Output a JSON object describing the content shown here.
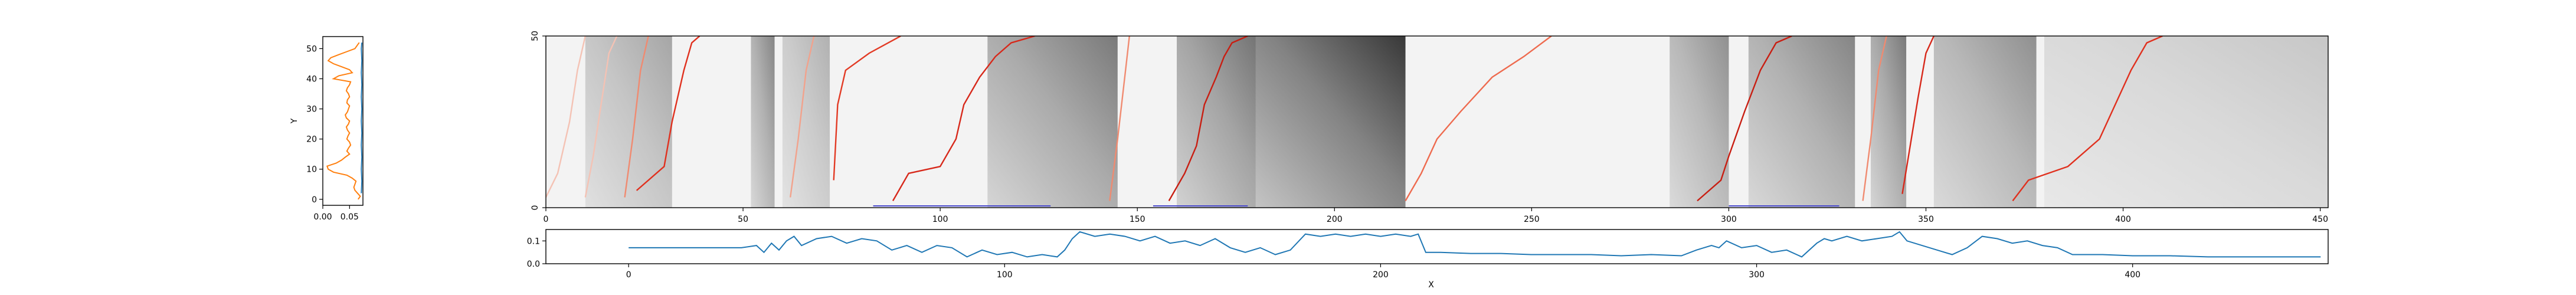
{
  "chart_data": [
    {
      "id": "left-profile",
      "type": "line",
      "ylabel": "Y",
      "xlim": [
        0,
        0.075
      ],
      "ylim": [
        -2,
        54
      ],
      "x_ticks": [
        0.0,
        0.05
      ],
      "x_tick_labels": [
        "0.00",
        "0.05"
      ],
      "y_ticks": [
        0,
        10,
        20,
        30,
        40,
        50
      ],
      "y_tick_labels": [
        "0",
        "10",
        "20",
        "30",
        "40",
        "50"
      ],
      "series": [
        {
          "color": "#ff7f0e",
          "y": [
            0,
            1,
            2,
            3,
            4,
            5,
            6,
            7,
            8,
            9,
            10,
            11,
            12,
            13,
            14,
            15,
            16,
            17,
            18,
            19,
            20,
            21,
            22,
            23,
            24,
            25,
            26,
            27,
            28,
            29,
            30,
            31,
            32,
            33,
            34,
            35,
            36,
            37,
            38,
            39,
            40,
            41,
            42,
            43,
            44,
            45,
            46,
            47,
            48,
            49,
            50,
            51,
            52
          ],
          "x": [
            0.066,
            0.07,
            0.065,
            0.06,
            0.058,
            0.06,
            0.062,
            0.055,
            0.045,
            0.02,
            0.01,
            0.008,
            0.025,
            0.035,
            0.042,
            0.05,
            0.045,
            0.048,
            0.052,
            0.05,
            0.045,
            0.047,
            0.05,
            0.046,
            0.044,
            0.048,
            0.05,
            0.044,
            0.042,
            0.046,
            0.048,
            0.05,
            0.045,
            0.046,
            0.05,
            0.048,
            0.044,
            0.046,
            0.05,
            0.052,
            0.02,
            0.03,
            0.055,
            0.05,
            0.035,
            0.02,
            0.01,
            0.015,
            0.03,
            0.045,
            0.06,
            0.064,
            0.068
          ]
        },
        {
          "color": "#1f77b4",
          "y": [
            2,
            6,
            10,
            14,
            18,
            22,
            26,
            30,
            34,
            38,
            42,
            46,
            50,
            52
          ],
          "x": [
            0.072,
            0.073,
            0.072,
            0.073,
            0.072,
            0.073,
            0.072,
            0.073,
            0.072,
            0.073,
            0.072,
            0.073,
            0.072,
            0.073
          ]
        }
      ]
    },
    {
      "id": "main-heatmap",
      "type": "heatmap",
      "xlim": [
        0,
        452
      ],
      "ylim": [
        0,
        50
      ],
      "x_ticks": [
        0,
        50,
        100,
        150,
        200,
        250,
        300,
        350,
        400,
        450
      ],
      "x_tick_labels": [
        "0",
        "50",
        "100",
        "150",
        "200",
        "250",
        "300",
        "350",
        "400",
        "450"
      ],
      "y_ticks": [
        0,
        50
      ],
      "y_tick_labels": [
        "0",
        "50"
      ],
      "colormap": "greys",
      "dark_regions": [
        {
          "x0": 10,
          "x1": 32,
          "y0": 0,
          "y1": 50,
          "intensity": 0.35
        },
        {
          "x0": 52,
          "x1": 58,
          "y0": 0,
          "y1": 50,
          "intensity": 0.5
        },
        {
          "x0": 60,
          "x1": 72,
          "y0": 0,
          "y1": 50,
          "intensity": 0.3
        },
        {
          "x0": 112,
          "x1": 145,
          "y0": 0,
          "y1": 50,
          "intensity": 0.55
        },
        {
          "x0": 160,
          "x1": 182,
          "y0": 0,
          "y1": 50,
          "intensity": 0.6
        },
        {
          "x0": 180,
          "x1": 218,
          "y0": 0,
          "y1": 50,
          "intensity": 0.85
        },
        {
          "x0": 285,
          "x1": 300,
          "y0": 0,
          "y1": 50,
          "intensity": 0.45
        },
        {
          "x0": 305,
          "x1": 332,
          "y0": 0,
          "y1": 50,
          "intensity": 0.5
        },
        {
          "x0": 336,
          "x1": 345,
          "y0": 0,
          "y1": 50,
          "intensity": 0.55
        },
        {
          "x0": 352,
          "x1": 378,
          "y0": 0,
          "y1": 50,
          "intensity": 0.45
        },
        {
          "x0": 380,
          "x1": 452,
          "y0": 0,
          "y1": 50,
          "intensity": 0.2
        }
      ],
      "path_lines": [
        {
          "color": "#f4c2b4",
          "points": [
            [
              0,
              3
            ],
            [
              3,
              10
            ],
            [
              6,
              25
            ],
            [
              8,
              40
            ],
            [
              10,
              50
            ]
          ]
        },
        {
          "color": "#f4c2b4",
          "points": [
            [
              10,
              3
            ],
            [
              12,
              15
            ],
            [
              14,
              30
            ],
            [
              16,
              45
            ],
            [
              18,
              50
            ]
          ]
        },
        {
          "color": "#f08a70",
          "points": [
            [
              20,
              3
            ],
            [
              22,
              20
            ],
            [
              24,
              40
            ],
            [
              26,
              50
            ]
          ]
        },
        {
          "color": "#e0301e",
          "points": [
            [
              23,
              5
            ],
            [
              30,
              12
            ],
            [
              32,
              25
            ],
            [
              35,
              40
            ],
            [
              37,
              48
            ],
            [
              39,
              50
            ]
          ]
        },
        {
          "color": "#f2a28c",
          "points": [
            [
              62,
              3
            ],
            [
              64,
              20
            ],
            [
              66,
              40
            ],
            [
              68,
              50
            ]
          ]
        },
        {
          "color": "#e23a24",
          "points": [
            [
              73,
              8
            ],
            [
              74,
              30
            ],
            [
              76,
              40
            ],
            [
              82,
              45
            ],
            [
              90,
              50
            ]
          ]
        },
        {
          "color": "#d7281a",
          "points": [
            [
              88,
              2
            ],
            [
              92,
              10
            ],
            [
              100,
              12
            ],
            [
              104,
              20
            ],
            [
              106,
              30
            ],
            [
              110,
              38
            ],
            [
              114,
              44
            ],
            [
              118,
              48
            ],
            [
              124,
              50
            ]
          ]
        },
        {
          "color": "#f08a70",
          "points": [
            [
              143,
              2
            ],
            [
              145,
              20
            ],
            [
              147,
              40
            ],
            [
              148,
              50
            ]
          ]
        },
        {
          "color": "#c81e12",
          "points": [
            [
              158,
              2
            ],
            [
              162,
              10
            ],
            [
              165,
              18
            ],
            [
              167,
              30
            ],
            [
              170,
              38
            ],
            [
              172,
              44
            ],
            [
              174,
              48
            ],
            [
              178,
              50
            ]
          ]
        },
        {
          "color": "#ee6a4e",
          "points": [
            [
              218,
              2
            ],
            [
              222,
              10
            ],
            [
              226,
              20
            ],
            [
              232,
              28
            ],
            [
              240,
              38
            ],
            [
              248,
              44
            ],
            [
              255,
              50
            ]
          ]
        },
        {
          "color": "#c81e12",
          "points": [
            [
              292,
              2
            ],
            [
              298,
              8
            ],
            [
              300,
              15
            ],
            [
              304,
              28
            ],
            [
              308,
              40
            ],
            [
              312,
              48
            ],
            [
              316,
              50
            ]
          ]
        },
        {
          "color": "#f08a70",
          "points": [
            [
              334,
              2
            ],
            [
              336,
              20
            ],
            [
              338,
              40
            ],
            [
              340,
              50
            ]
          ]
        },
        {
          "color": "#d7281a",
          "points": [
            [
              344,
              4
            ],
            [
              346,
              18
            ],
            [
              348,
              32
            ],
            [
              350,
              45
            ],
            [
              352,
              50
            ]
          ]
        },
        {
          "color": "#e0301e",
          "points": [
            [
              372,
              2
            ],
            [
              376,
              8
            ],
            [
              386,
              12
            ],
            [
              394,
              20
            ],
            [
              398,
              30
            ],
            [
              402,
              40
            ],
            [
              406,
              48
            ],
            [
              410,
              50
            ]
          ]
        }
      ],
      "segments": [
        {
          "color": "#4a4acd",
          "x0": 83,
          "x1": 128,
          "y": 0
        },
        {
          "color": "#4a4acd",
          "x0": 154,
          "x1": 178,
          "y": 0
        },
        {
          "color": "#4a4acd",
          "x0": 300,
          "x1": 328,
          "y": 0
        }
      ]
    },
    {
      "id": "bottom-profile",
      "type": "line",
      "xlabel": "X",
      "xlim": [
        -22,
        452
      ],
      "ylim": [
        0,
        0.15
      ],
      "x_ticks": [
        0,
        100,
        200,
        300,
        400
      ],
      "x_tick_labels": [
        "0",
        "100",
        "200",
        "300",
        "400"
      ],
      "y_ticks": [
        0.0,
        0.1
      ],
      "y_tick_labels": [
        "0.0",
        "0.1"
      ],
      "series": [
        {
          "color": "#1f77b4",
          "x": [
            0,
            10,
            20,
            30,
            34,
            36,
            38,
            40,
            42,
            44,
            46,
            50,
            54,
            58,
            62,
            66,
            70,
            74,
            78,
            82,
            86,
            90,
            94,
            98,
            102,
            106,
            110,
            114,
            116,
            118,
            120,
            124,
            128,
            132,
            136,
            140,
            144,
            148,
            152,
            156,
            160,
            164,
            168,
            172,
            176,
            180,
            184,
            188,
            192,
            196,
            200,
            204,
            208,
            210,
            212,
            216,
            224,
            232,
            240,
            248,
            256,
            264,
            272,
            280,
            284,
            288,
            290,
            292,
            296,
            300,
            304,
            308,
            312,
            316,
            318,
            320,
            324,
            328,
            332,
            336,
            338,
            340,
            344,
            348,
            352,
            356,
            360,
            364,
            368,
            372,
            376,
            380,
            384,
            392,
            400,
            410,
            420,
            430,
            440,
            450
          ],
          "y": [
            0.07,
            0.07,
            0.07,
            0.07,
            0.08,
            0.05,
            0.09,
            0.06,
            0.1,
            0.12,
            0.08,
            0.11,
            0.12,
            0.09,
            0.11,
            0.1,
            0.06,
            0.08,
            0.05,
            0.08,
            0.07,
            0.03,
            0.06,
            0.04,
            0.05,
            0.03,
            0.04,
            0.03,
            0.06,
            0.11,
            0.14,
            0.12,
            0.13,
            0.12,
            0.1,
            0.12,
            0.09,
            0.1,
            0.08,
            0.11,
            0.07,
            0.05,
            0.07,
            0.04,
            0.06,
            0.13,
            0.12,
            0.13,
            0.12,
            0.13,
            0.12,
            0.13,
            0.12,
            0.13,
            0.05,
            0.05,
            0.045,
            0.045,
            0.04,
            0.04,
            0.04,
            0.035,
            0.04,
            0.035,
            0.06,
            0.08,
            0.07,
            0.1,
            0.07,
            0.08,
            0.05,
            0.06,
            0.03,
            0.09,
            0.11,
            0.1,
            0.12,
            0.1,
            0.11,
            0.12,
            0.14,
            0.1,
            0.08,
            0.06,
            0.04,
            0.07,
            0.12,
            0.11,
            0.09,
            0.1,
            0.08,
            0.07,
            0.04,
            0.04,
            0.035,
            0.035,
            0.03,
            0.03,
            0.03,
            0.03
          ]
        }
      ]
    }
  ]
}
